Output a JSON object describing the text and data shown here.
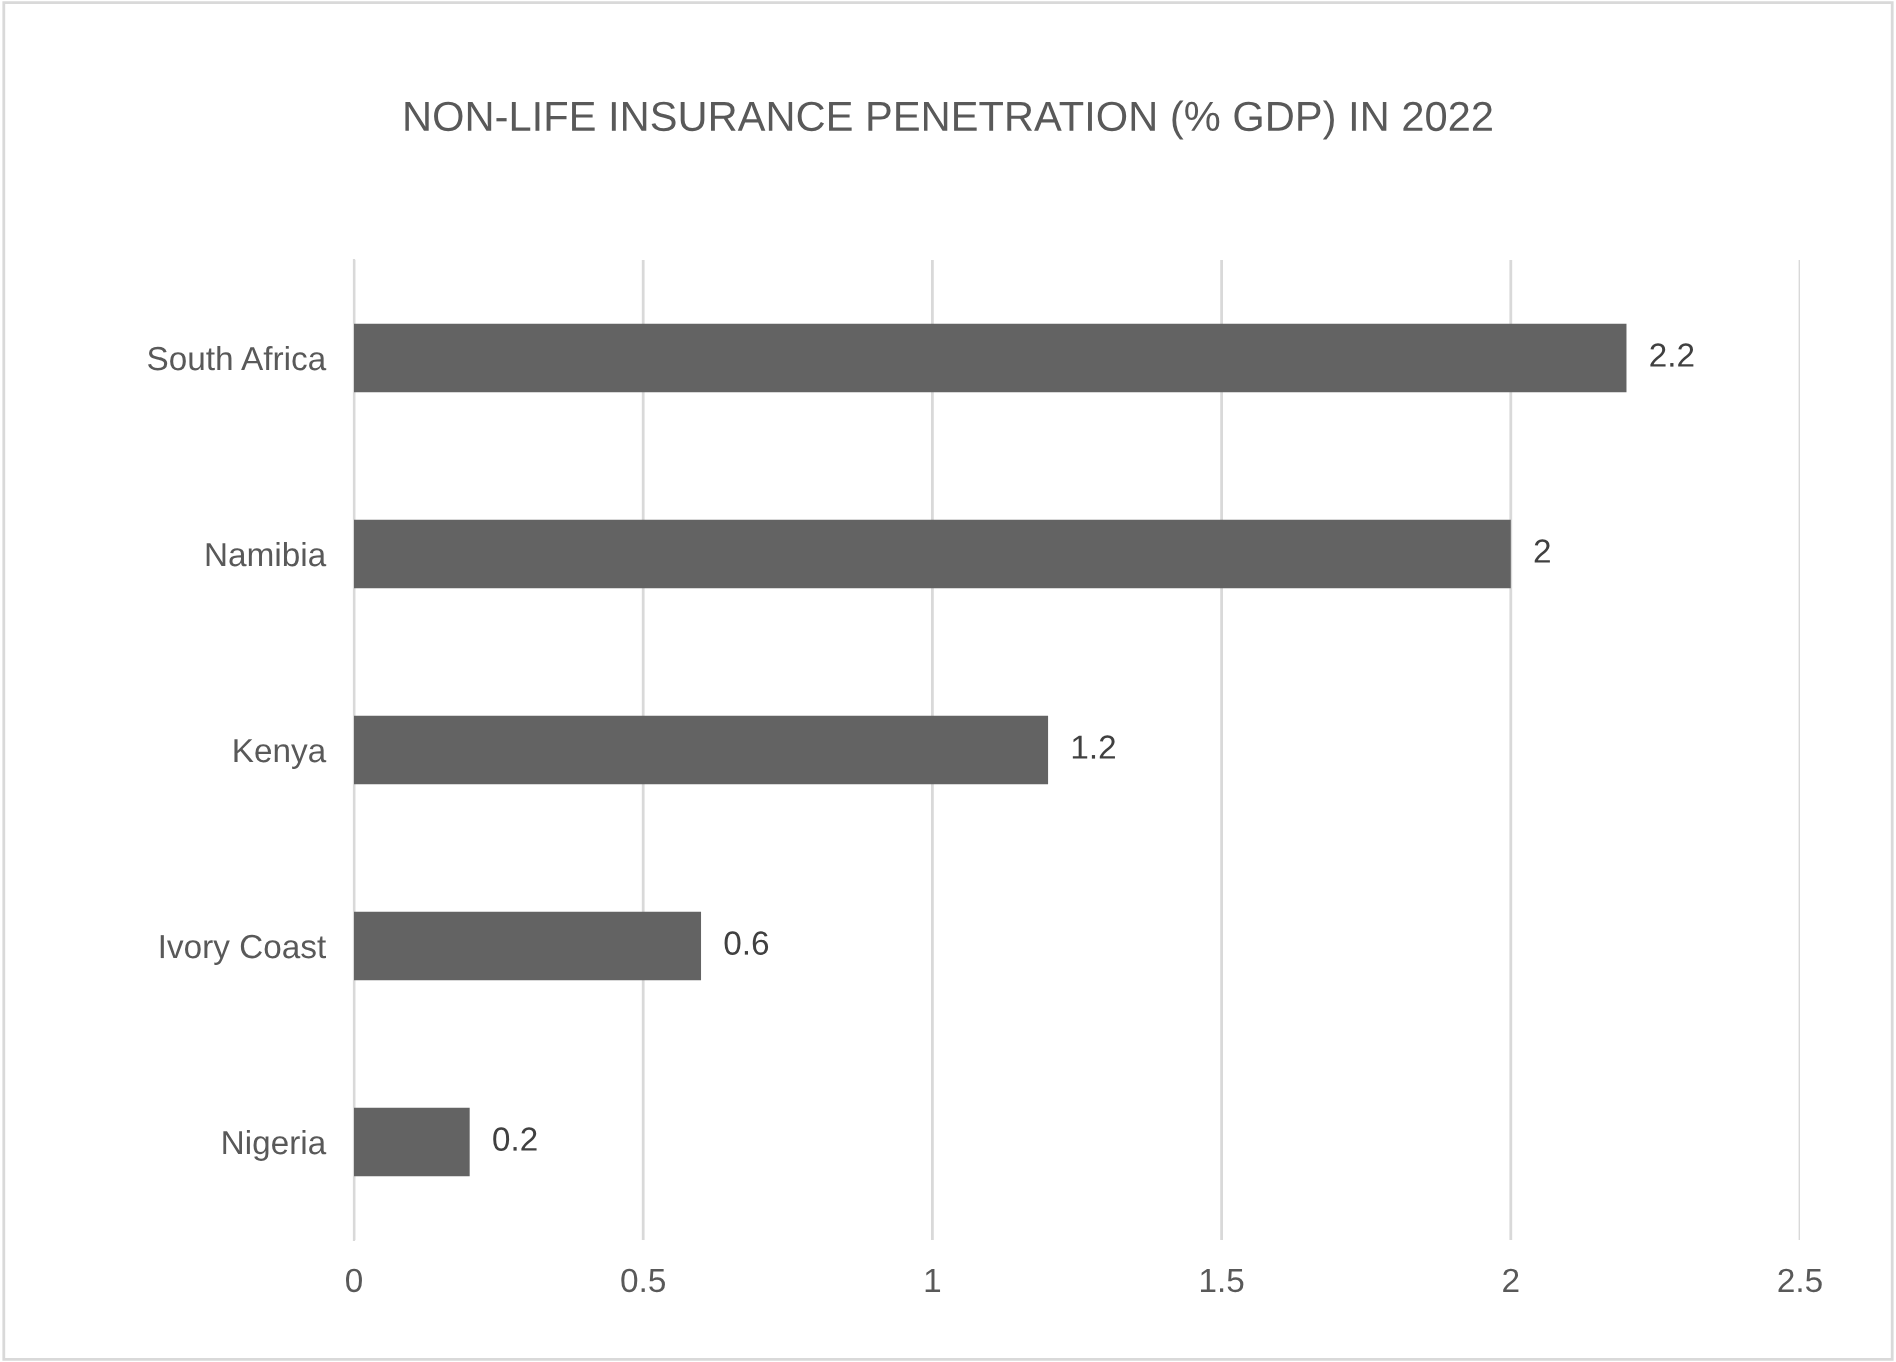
{
  "chart_data": {
    "type": "bar",
    "orientation": "horizontal",
    "title": "NON-LIFE INSURANCE PENETRATION (% GDP) IN 2022",
    "categories": [
      "South Africa",
      "Namibia",
      "Kenya",
      "Ivory Coast",
      "Nigeria"
    ],
    "values": [
      2.2,
      2,
      1.2,
      0.6,
      0.2
    ],
    "color": "#636363",
    "xlim": [
      0,
      2.5
    ],
    "xticks": [
      0,
      0.5,
      1,
      1.5,
      2,
      2.5
    ],
    "grid": "x",
    "data_labels": true
  }
}
